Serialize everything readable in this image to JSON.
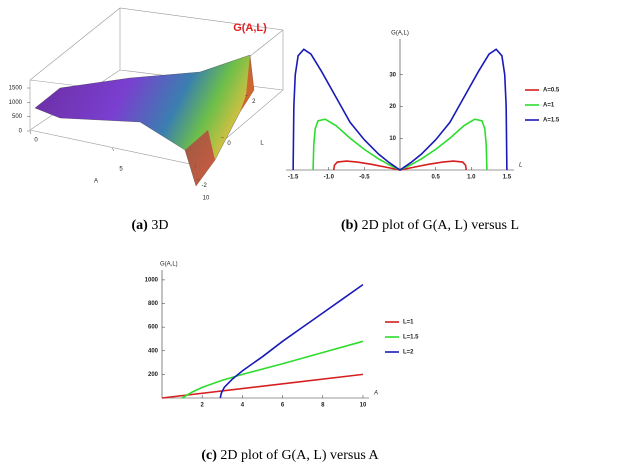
{
  "chart_data": [
    {
      "type": "surface3d",
      "title": "G(A,L)",
      "xlabel": "A",
      "ylabel": "L",
      "xticks": [
        0,
        5,
        10
      ],
      "yticks": [
        -2,
        0,
        2
      ],
      "zticks": [
        0,
        500,
        1000,
        1500
      ],
      "xlim": [
        0,
        10
      ],
      "ylim": [
        -2.5,
        2.5
      ],
      "zlim": [
        0,
        1500
      ],
      "caption": {
        "label": "(a)",
        "text": "3D"
      }
    },
    {
      "type": "line",
      "title": "G(A,L)",
      "xlabel": "L",
      "xlim": [
        -1.6,
        1.6
      ],
      "ylim": [
        0,
        40
      ],
      "xticks": [
        {
          "value": -1.5,
          "label": "-1.5"
        },
        {
          "value": -1,
          "label": "-1.0"
        },
        {
          "value": -0.5,
          "label": "-0.5"
        },
        0.5,
        {
          "value": 1,
          "label": "1.0"
        },
        1.5
      ],
      "yticks": [
        10,
        20,
        30
      ],
      "series": [
        {
          "name": "A=0.5",
          "color": "#d62020",
          "x": [
            -0.93,
            -0.92,
            -0.88,
            -0.75,
            -0.6,
            -0.4,
            -0.2,
            0,
            0.2,
            0.4,
            0.6,
            0.75,
            0.88,
            0.92,
            0.93
          ],
          "values": [
            0,
            1.5,
            2.5,
            2.8,
            2.5,
            1.8,
            0.9,
            0,
            0.9,
            1.8,
            2.5,
            2.8,
            2.5,
            1.5,
            0
          ]
        },
        {
          "name": "A=1",
          "color": "#2ddc2d",
          "x": [
            -1.22,
            -1.21,
            -1.19,
            -1.15,
            -1.05,
            -0.9,
            -0.7,
            -0.5,
            -0.3,
            -0.15,
            0,
            0.15,
            0.3,
            0.5,
            0.7,
            0.9,
            1.05,
            1.15,
            1.19,
            1.21,
            1.22
          ],
          "values": [
            0,
            8,
            13,
            15.5,
            16,
            14,
            10,
            6.5,
            3.5,
            1.6,
            0,
            1.6,
            3.5,
            6.5,
            10,
            14,
            16,
            15.5,
            13,
            8,
            0
          ]
        },
        {
          "name": "A=1.5",
          "color": "#1a1ab8",
          "x": [
            -1.5,
            -1.49,
            -1.47,
            -1.43,
            -1.35,
            -1.25,
            -1.1,
            -0.9,
            -0.7,
            -0.5,
            -0.3,
            -0.15,
            0,
            0.15,
            0.3,
            0.5,
            0.7,
            0.9,
            1.1,
            1.25,
            1.35,
            1.43,
            1.47,
            1.49,
            1.5
          ],
          "values": [
            0,
            20,
            30,
            36,
            38,
            36.5,
            31,
            23,
            15,
            9.5,
            5,
            2.3,
            0,
            2.3,
            5,
            9.5,
            15,
            23,
            31,
            36.5,
            38,
            36,
            30,
            20,
            0
          ]
        }
      ],
      "caption": {
        "label": "(b)",
        "text": "2D plot of G(A, L) versus L"
      }
    },
    {
      "type": "line",
      "title": "G(A,L)",
      "xlabel": "A",
      "xlim": [
        0,
        10.3
      ],
      "ylim": [
        0,
        1050
      ],
      "xticks": [
        2,
        4,
        6,
        8,
        10
      ],
      "yticks": [
        200,
        400,
        600,
        800,
        1000
      ],
      "series": [
        {
          "name": "L=1",
          "color": "#d62020",
          "x": [
            0,
            10
          ],
          "values": [
            0,
            200
          ]
        },
        {
          "name": "L=1.5",
          "color": "#2ddc2d",
          "x": [
            1,
            1.5,
            2,
            3,
            4,
            6,
            8,
            10
          ],
          "values": [
            0,
            50,
            90,
            150,
            200,
            290,
            385,
            480
          ]
        },
        {
          "name": "L=2",
          "color": "#1a1ab8",
          "x": [
            2.9,
            2.95,
            3.1,
            3.5,
            4,
            5,
            6,
            7,
            8,
            9,
            10
          ],
          "values": [
            0,
            40,
            90,
            160,
            230,
            350,
            480,
            600,
            720,
            840,
            960
          ]
        }
      ],
      "caption": {
        "label": "(c)",
        "text": "2D plot of G(A, L) versus A"
      }
    }
  ]
}
